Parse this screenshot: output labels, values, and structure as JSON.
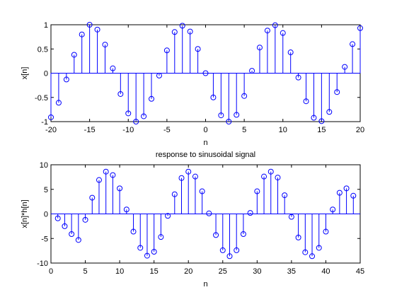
{
  "chart_data": [
    {
      "type": "stem",
      "title": "",
      "xlabel": "n",
      "ylabel": "x[n]",
      "xlim": [
        -20,
        20
      ],
      "ylim": [
        -1,
        1
      ],
      "xticks": [
        -20,
        -15,
        -10,
        -5,
        0,
        5,
        10,
        15,
        20
      ],
      "yticks": [
        -1,
        -0.5,
        0,
        0.5,
        1
      ],
      "x": [
        -20,
        -19,
        -18,
        -17,
        -16,
        -15,
        -14,
        -13,
        -12,
        -11,
        -10,
        -9,
        -8,
        -7,
        -6,
        -5,
        -4,
        -3,
        -2,
        -1,
        0,
        1,
        2,
        3,
        4,
        5,
        6,
        7,
        8,
        9,
        10,
        11,
        12,
        13,
        14,
        15,
        16,
        17,
        18,
        19,
        20
      ],
      "y": [
        -0.91,
        -0.61,
        -0.13,
        0.38,
        0.8,
        1.0,
        0.9,
        0.59,
        0.1,
        -0.43,
        -0.83,
        -1.0,
        -0.89,
        -0.53,
        -0.05,
        0.47,
        0.85,
        0.98,
        0.86,
        0.5,
        0.0,
        -0.5,
        -0.87,
        -1.0,
        -0.86,
        -0.47,
        0.05,
        0.53,
        0.88,
        0.99,
        0.83,
        0.43,
        -0.09,
        -0.58,
        -0.92,
        -0.99,
        -0.8,
        -0.39,
        0.13,
        0.6,
        0.93
      ],
      "color": "#0000ff",
      "grid": false
    },
    {
      "type": "stem",
      "title": "response to sinusoidal signal",
      "xlabel": "n",
      "ylabel": "x[n]*h[n]",
      "xlim": [
        0,
        45
      ],
      "ylim": [
        -10,
        10
      ],
      "xticks": [
        0,
        5,
        10,
        15,
        20,
        25,
        30,
        35,
        40,
        45
      ],
      "yticks": [
        -10,
        -5,
        0,
        5,
        10
      ],
      "x": [
        1,
        2,
        3,
        4,
        5,
        6,
        7,
        8,
        9,
        10,
        11,
        12,
        13,
        14,
        15,
        16,
        17,
        18,
        19,
        20,
        21,
        22,
        23,
        24,
        25,
        26,
        27,
        28,
        29,
        30,
        31,
        32,
        33,
        34,
        35,
        36,
        37,
        38,
        39,
        40,
        41,
        42,
        43,
        44
      ],
      "y": [
        -0.9,
        -2.5,
        -4.1,
        -5.3,
        -1.2,
        3.3,
        6.9,
        8.6,
        7.9,
        5.2,
        0.9,
        -3.6,
        -6.9,
        -8.5,
        -7.7,
        -4.7,
        -0.4,
        4.0,
        7.3,
        8.6,
        7.6,
        4.6,
        0.1,
        -4.3,
        -7.4,
        -8.6,
        -7.4,
        -4.1,
        0.2,
        4.6,
        7.6,
        8.6,
        7.4,
        3.8,
        -0.6,
        -4.8,
        -7.8,
        -8.6,
        -6.9,
        -3.6,
        0.9,
        4.3,
        5.2,
        3.7
      ],
      "color": "#0000ff",
      "grid": false
    }
  ]
}
